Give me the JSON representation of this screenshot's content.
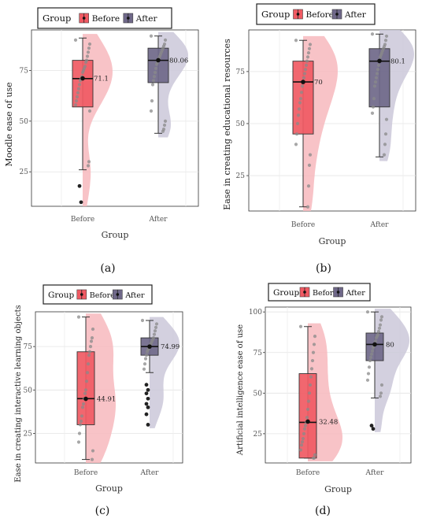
{
  "chart_data": [
    {
      "type": "raincloud-boxplot",
      "panel_label": "(a)",
      "legend_title": "Group",
      "legend_entries": [
        "Before",
        "After"
      ],
      "xlabel": "Group",
      "ylabel": "Moodle ease of use",
      "categories": [
        "Before",
        "After"
      ],
      "ylim": [
        8,
        95
      ],
      "yticks": [
        25,
        50,
        75
      ],
      "grid": true,
      "colors": [
        "#f05a63",
        "#6f6889"
      ],
      "halo_colors": [
        "#f7b8bd",
        "#cbc8d9"
      ],
      "groups": [
        {
          "name": "Before",
          "min": 26,
          "q1": 57,
          "median": 71,
          "mean": 71.1,
          "mean_label": "71.1",
          "q3": 80,
          "max": 91,
          "outliers": [
            18,
            10
          ],
          "points": [
            90,
            88,
            86,
            84,
            82,
            80,
            79,
            77,
            76,
            75,
            74,
            72,
            71,
            70,
            68,
            66,
            64,
            62,
            60,
            58,
            55,
            30,
            28
          ]
        },
        {
          "name": "After",
          "min": 44,
          "q1": 69,
          "median": 80,
          "mean": 80.06,
          "mean_label": "80.06",
          "q3": 86,
          "max": 92,
          "outliers": [],
          "points": [
            92,
            90,
            88,
            87,
            86,
            85,
            84,
            83,
            82,
            81,
            80,
            79,
            78,
            76,
            74,
            72,
            70,
            68,
            60,
            55,
            50,
            48,
            46,
            45
          ]
        }
      ]
    },
    {
      "type": "raincloud-boxplot",
      "panel_label": "(b)",
      "legend_title": "Group",
      "legend_entries": [
        "Before",
        "After"
      ],
      "xlabel": "Group",
      "ylabel": "Ease in creating educational resources",
      "categories": [
        "Before",
        "After"
      ],
      "ylim": [
        8,
        95
      ],
      "yticks": [
        25,
        50,
        75
      ],
      "grid": true,
      "colors": [
        "#f05a63",
        "#6f6889"
      ],
      "halo_colors": [
        "#f7b8bd",
        "#cbc8d9"
      ],
      "groups": [
        {
          "name": "Before",
          "min": 10,
          "q1": 45,
          "median": 70,
          "mean": 70,
          "mean_label": "70",
          "q3": 80,
          "max": 90,
          "outliers": [],
          "points": [
            90,
            88,
            86,
            84,
            82,
            80,
            78,
            76,
            74,
            72,
            70,
            68,
            65,
            62,
            60,
            57,
            54,
            50,
            45,
            40,
            35,
            30,
            20,
            10
          ]
        },
        {
          "name": "After",
          "min": 34,
          "q1": 58,
          "median": 80,
          "mean": 80.1,
          "mean_label": "80.1",
          "q3": 86,
          "max": 93,
          "outliers": [],
          "points": [
            93,
            92,
            90,
            88,
            87,
            86,
            85,
            84,
            83,
            82,
            80,
            78,
            76,
            74,
            72,
            70,
            68,
            62,
            58,
            55,
            52,
            45,
            40,
            35
          ]
        }
      ]
    },
    {
      "type": "raincloud-boxplot",
      "panel_label": "(c)",
      "legend_title": "Group",
      "legend_entries": [
        "Before",
        "After"
      ],
      "xlabel": "Group",
      "ylabel": "Ease in creating interactive learning objects",
      "categories": [
        "Before",
        "After"
      ],
      "ylim": [
        8,
        95
      ],
      "yticks": [
        25,
        50,
        75
      ],
      "grid": true,
      "colors": [
        "#f05a63",
        "#6f6889"
      ],
      "halo_colors": [
        "#f7b8bd",
        "#cbc8d9"
      ],
      "groups": [
        {
          "name": "Before",
          "min": 10,
          "q1": 30,
          "median": 45,
          "mean": 44.91,
          "mean_label": "44.91",
          "q3": 72,
          "max": 92,
          "outliers": [],
          "points": [
            92,
            85,
            80,
            78,
            75,
            72,
            70,
            65,
            60,
            55,
            50,
            48,
            45,
            42,
            40,
            35,
            32,
            30,
            25,
            20,
            15,
            10
          ]
        },
        {
          "name": "After",
          "min": 60,
          "q1": 70,
          "median": 75,
          "mean": 74.99,
          "mean_label": "74.99",
          "q3": 80,
          "max": 90,
          "outliers": [
            53,
            50,
            48,
            45,
            42,
            40,
            36,
            30
          ],
          "points": [
            90,
            88,
            86,
            84,
            82,
            80,
            79,
            78,
            77,
            76,
            75,
            74,
            73,
            72,
            70,
            68,
            65,
            62
          ]
        }
      ]
    },
    {
      "type": "raincloud-boxplot",
      "panel_label": "(d)",
      "legend_title": "Group",
      "legend_entries": [
        "Before",
        "After"
      ],
      "xlabel": "Group",
      "ylabel": "Artificial intelligence ease of use",
      "categories": [
        "Before",
        "After"
      ],
      "ylim": [
        7,
        103
      ],
      "yticks": [
        25,
        50,
        75,
        100
      ],
      "grid": true,
      "colors": [
        "#f05a63",
        "#6f6889"
      ],
      "halo_colors": [
        "#f7b8bd",
        "#cbc8d9"
      ],
      "groups": [
        {
          "name": "Before",
          "min": 10,
          "q1": 10,
          "median": 32,
          "mean": 32.48,
          "mean_label": "32.48",
          "q3": 62,
          "max": 91,
          "outliers": [],
          "points": [
            91,
            85,
            80,
            75,
            70,
            65,
            60,
            55,
            50,
            45,
            40,
            35,
            32,
            30,
            28,
            25,
            22,
            20,
            18,
            15,
            12,
            10,
            10
          ]
        },
        {
          "name": "After",
          "min": 47,
          "q1": 70,
          "median": 80,
          "mean": 80,
          "mean_label": "80",
          "q3": 87,
          "max": 100,
          "outliers": [
            30,
            28
          ],
          "points": [
            100,
            97,
            95,
            92,
            90,
            88,
            86,
            85,
            84,
            82,
            80,
            79,
            78,
            76,
            74,
            72,
            70,
            66,
            62,
            58,
            55,
            50,
            48
          ]
        }
      ]
    }
  ]
}
